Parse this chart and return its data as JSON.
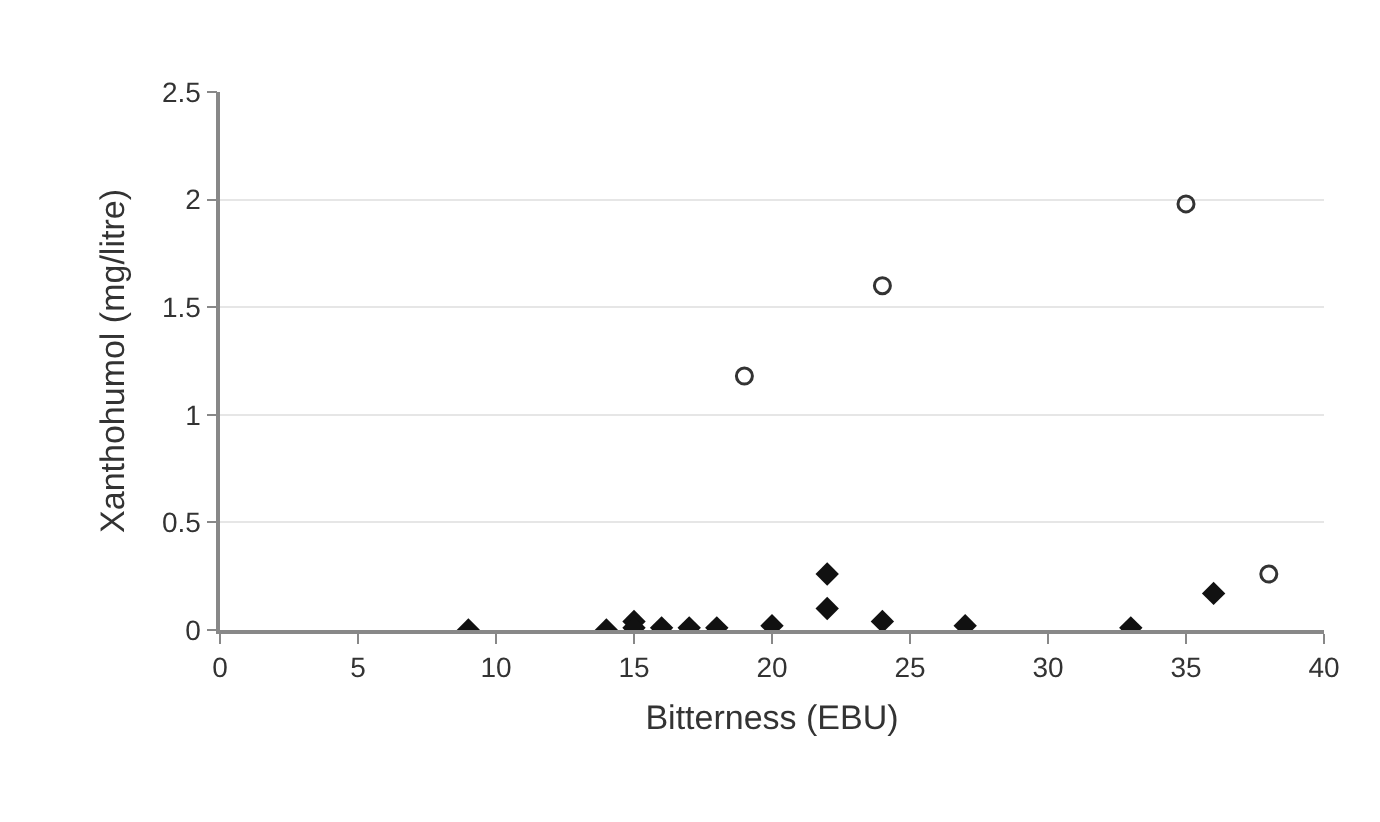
{
  "chart_data": {
    "type": "scatter",
    "xlabel": "Bitterness (EBU)",
    "ylabel": "Xanthohumol (mg/litre)",
    "xlim": [
      0,
      40
    ],
    "xticks": [
      0,
      5,
      10,
      15,
      20,
      25,
      30,
      35,
      40
    ],
    "ylim": [
      0,
      2.5
    ],
    "yticks": [
      0,
      0.5,
      1,
      1.5,
      2,
      2.5
    ],
    "grid": "y",
    "series": [
      {
        "color": "#111111",
        "marker": "diamond",
        "x": [
          9,
          14,
          15,
          15,
          16,
          17,
          18,
          20,
          22,
          22,
          24,
          27,
          33,
          36
        ],
        "values": [
          0,
          0,
          0.04,
          0.01,
          0.01,
          0.01,
          0.01,
          0.02,
          0.26,
          0.1,
          0.04,
          0.02,
          0.01,
          0.17
        ]
      },
      {
        "color": "#333333",
        "marker": "circle-open",
        "x": [
          19,
          24,
          35,
          38
        ],
        "values": [
          1.18,
          1.6,
          1.98,
          0.26
        ]
      }
    ]
  }
}
